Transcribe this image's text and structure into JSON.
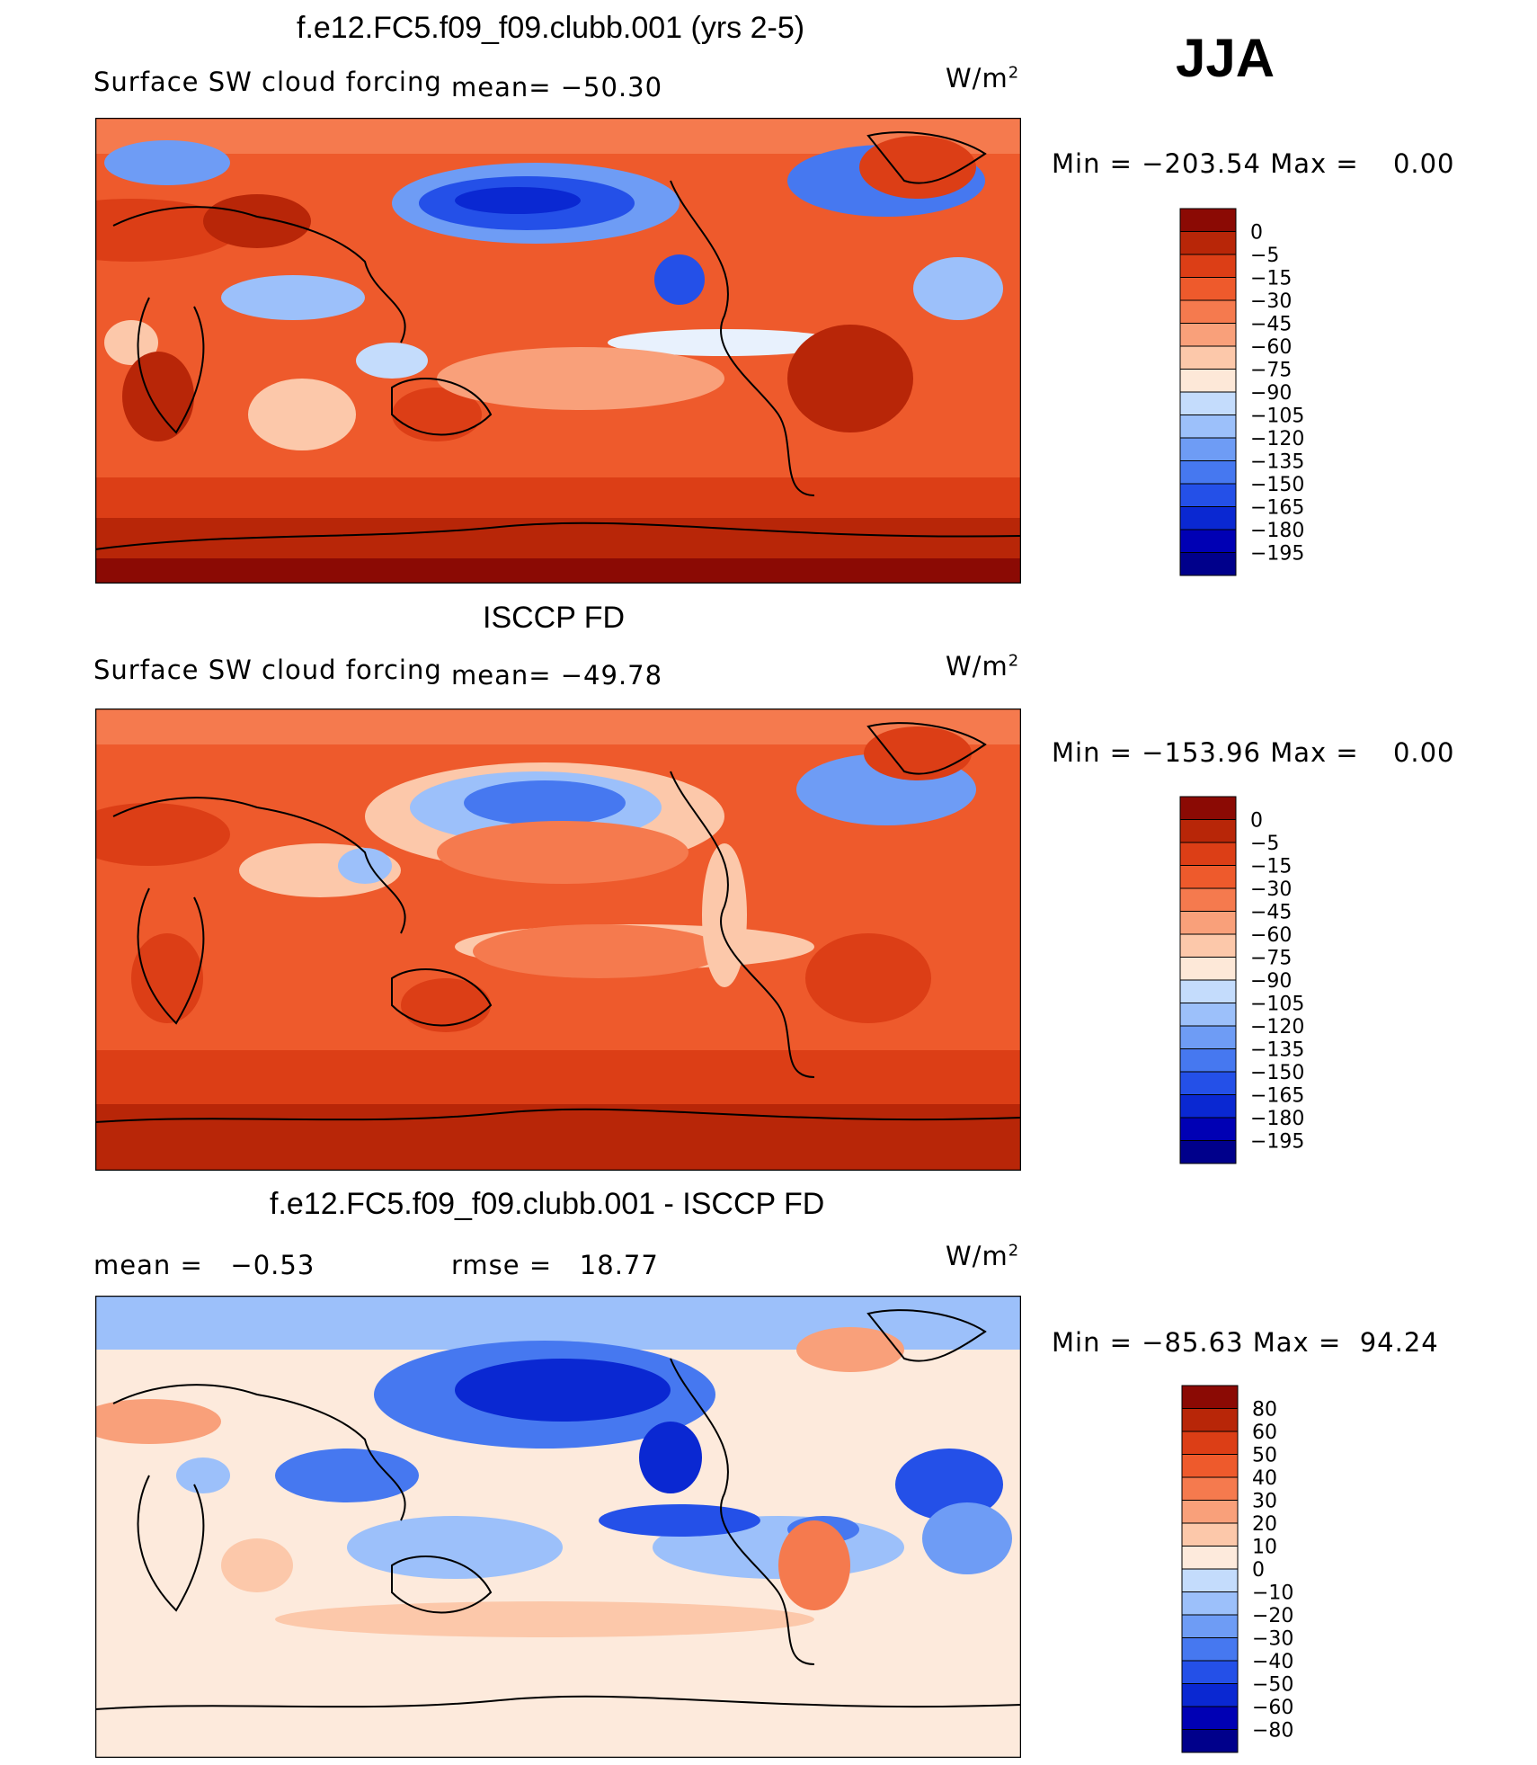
{
  "season": "JJA",
  "colors": {
    "abs_scale": [
      "#00008b",
      "#0000b4",
      "#0a28d2",
      "#2450e8",
      "#4678f0",
      "#6e9cf5",
      "#9cc0fa",
      "#c4dcfc",
      "#e8f1fd",
      "#fde8d8",
      "#fcc8aa",
      "#f9a07a",
      "#f57a4e",
      "#ee5a2c",
      "#dc3e16",
      "#b82608",
      "#8b0a04"
    ],
    "diff_scale": [
      "#00008b",
      "#0000b4",
      "#0a28d2",
      "#2450e8",
      "#4678f0",
      "#6e9cf5",
      "#9cc0fa",
      "#c4dcfc",
      "#e8f1fd",
      "#fdeadc",
      "#fcc8aa",
      "#f9a07a",
      "#f57a4e",
      "#ee5a2c",
      "#dc3e16",
      "#b82608",
      "#8b0a04"
    ]
  },
  "panels": [
    {
      "id": "model",
      "title": "f.e12.FC5.f09_f09.clubb.001 (yrs 2-5)",
      "variable": "Surface SW cloud forcing",
      "stat_text": "mean= −50.30",
      "units_base": "W/m",
      "units_exp": "2",
      "min_label": "Min",
      "min_value": "−203.54",
      "max_label": "Max",
      "max_value": "0.00"
    },
    {
      "id": "obs",
      "title": "ISCCP FD",
      "variable": "Surface SW cloud forcing",
      "stat_text": "mean= −49.78",
      "units_base": "W/m",
      "units_exp": "2",
      "min_label": "Min",
      "min_value": "−153.96",
      "max_label": "Max",
      "max_value": "0.00"
    },
    {
      "id": "diff",
      "title": "f.e12.FC5.f09_f09.clubb.001 - ISCCP FD",
      "mean_label": "mean =",
      "mean_value": "−0.53",
      "rmse_label": "rmse =",
      "rmse_value": "18.77",
      "units_base": "W/m",
      "units_exp": "2",
      "min_label": "Min",
      "min_value": "−85.63",
      "max_label": "Max",
      "max_value": "94.24"
    }
  ],
  "chart_data": [
    {
      "type": "heatmap",
      "title": "f.e12.FC5.f09_f09.clubb.001 (yrs 2-5)",
      "subtitle": "Surface SW cloud forcing",
      "units": "W/m2",
      "mean": -50.3,
      "min": -203.54,
      "max": 0.0,
      "colorbar_levels": [
        "0",
        "−5",
        "−15",
        "−30",
        "−45",
        "−60",
        "−75",
        "−90",
        "−105",
        "−120",
        "−135",
        "−150",
        "−165",
        "−180",
        "−195"
      ]
    },
    {
      "type": "heatmap",
      "title": "ISCCP FD",
      "subtitle": "Surface SW cloud forcing",
      "units": "W/m2",
      "mean": -49.78,
      "min": -153.96,
      "max": 0.0,
      "colorbar_levels": [
        "0",
        "−5",
        "−15",
        "−30",
        "−45",
        "−60",
        "−75",
        "−90",
        "−105",
        "−120",
        "−135",
        "−150",
        "−165",
        "−180",
        "−195"
      ]
    },
    {
      "type": "heatmap",
      "title": "f.e12.FC5.f09_f09.clubb.001 - ISCCP FD",
      "units": "W/m2",
      "mean": -0.53,
      "rmse": 18.77,
      "min": -85.63,
      "max": 94.24,
      "colorbar_levels": [
        "80",
        "60",
        "50",
        "40",
        "30",
        "20",
        "10",
        "0",
        "−10",
        "−20",
        "−30",
        "−40",
        "−50",
        "−60",
        "−80"
      ]
    }
  ]
}
